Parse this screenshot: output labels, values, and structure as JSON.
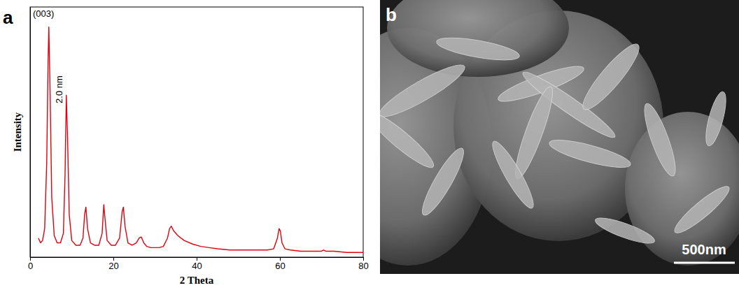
{
  "chart_data": {
    "type": "line",
    "panel_label": "a",
    "x_label": "2 Theta",
    "y_label": "Intensity",
    "annotations": [
      {
        "text": "(003)"
      },
      {
        "text": "2.0 nm"
      }
    ],
    "x": [
      2,
      2.5,
      3,
      3.5,
      4,
      4.3,
      4.5,
      4.8,
      5.2,
      5.8,
      6.5,
      7.3,
      8.0,
      8.4,
      8.7,
      9.0,
      9.4,
      10,
      11,
      12,
      12.7,
      13.1,
      13.4,
      13.8,
      14.5,
      15.5,
      16.5,
      17.3,
      17.7,
      18.0,
      18.5,
      19.5,
      20.5,
      21.5,
      22.1,
      22.4,
      22.8,
      23.5,
      24.5,
      25.5,
      26.2,
      26.7,
      27.3,
      28,
      29,
      30,
      31,
      32,
      33,
      33.5,
      33.9,
      34.5,
      35.5,
      37,
      39,
      41,
      43,
      45,
      48,
      51,
      54,
      57,
      58.5,
      59.4,
      59.8,
      60.1,
      60.5,
      61.2,
      62.5,
      65,
      68,
      70,
      70.5,
      71,
      73,
      76,
      79,
      80
    ],
    "values": [
      8,
      6,
      7,
      12,
      40,
      80,
      96.6,
      70,
      25,
      9,
      6,
      6,
      10,
      35,
      68,
      50,
      18,
      7,
      5,
      5,
      8,
      18,
      21,
      12,
      6,
      5,
      5,
      10,
      22,
      16,
      7,
      5,
      5,
      8,
      19,
      21,
      13,
      6,
      5,
      6,
      8,
      8.5,
      6,
      4.5,
      4,
      4,
      4,
      4.5,
      8,
      12,
      13,
      11,
      9,
      7,
      5.5,
      4.5,
      4,
      3.5,
      3,
      3,
      3,
      3,
      3.5,
      8,
      12,
      11,
      6,
      3.5,
      3,
      2.5,
      2.5,
      2.5,
      3,
      2.5,
      2.5,
      2,
      2,
      2
    ],
    "color": "#e3000f",
    "xlim": [
      0,
      80
    ],
    "xticks": [
      0,
      20,
      40,
      60,
      80
    ],
    "ylim": [
      0,
      105
    ],
    "grid": false,
    "tick_labels": "x"
  },
  "image_panel": {
    "panel_label": "b",
    "scale_bar_label": "500nm"
  }
}
